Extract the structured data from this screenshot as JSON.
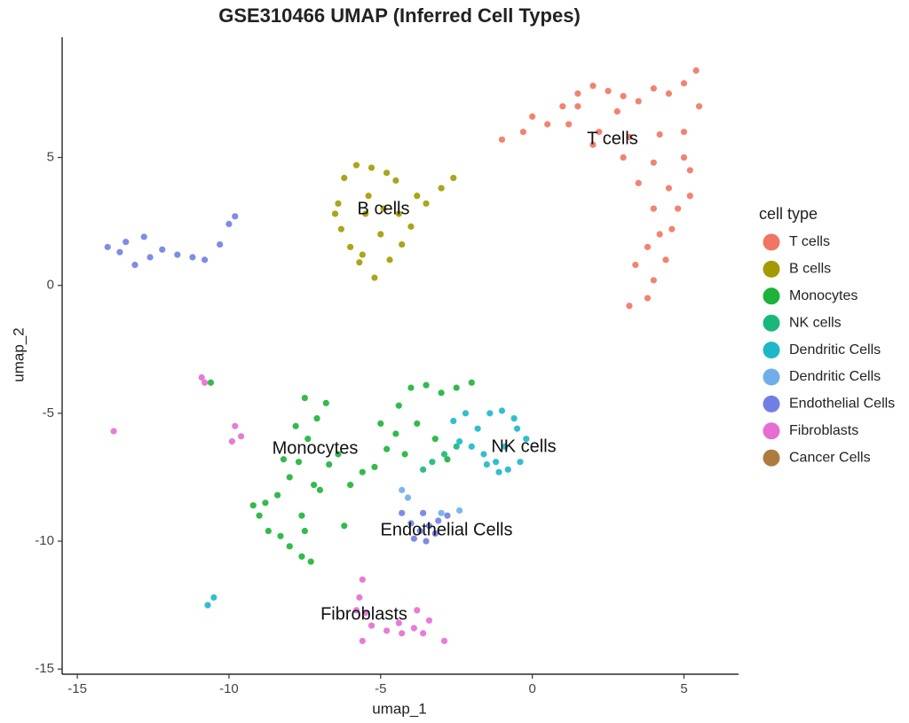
{
  "chart_data": {
    "type": "scatter",
    "title": "GSE310466 UMAP (Inferred Cell Types)",
    "x_label": "umap_1",
    "y_label": "umap_2",
    "legend_title": "cell type",
    "xlim": [
      -15.5,
      6.8
    ],
    "ylim": [
      -15.2,
      9.7
    ],
    "xticks": [
      -15,
      -10,
      -5,
      0,
      5
    ],
    "yticks": [
      -15,
      -10,
      -5,
      0,
      5
    ],
    "grid": false,
    "legend_position": "right",
    "annotations": [
      "T cells",
      "B cells",
      "Monocytes",
      "NK cells",
      "Endothelial Cells",
      "Fibroblasts"
    ],
    "series": [
      {
        "name": "T cells",
        "color": "#F07563",
        "x": [
          -1.0,
          -0.3,
          0.5,
          1.0,
          1.5,
          2.0,
          2.5,
          3.0,
          3.5,
          4.0,
          4.5,
          5.0,
          5.4,
          5.5,
          0.0,
          1.2,
          2.2,
          3.2,
          4.2,
          5.0,
          2.0,
          3.0,
          4.0,
          5.0,
          3.5,
          4.5,
          5.2,
          4.0,
          4.8,
          4.2,
          4.6,
          3.8,
          4.4,
          3.4,
          4.0,
          3.2,
          3.8,
          5.2,
          1.5,
          2.8
        ],
        "values": [
          5.7,
          6.0,
          6.3,
          7.0,
          7.5,
          7.8,
          7.6,
          7.4,
          7.2,
          7.7,
          7.5,
          7.9,
          8.4,
          7.0,
          6.6,
          6.3,
          6.0,
          5.8,
          5.9,
          6.0,
          5.5,
          5.0,
          4.8,
          5.0,
          4.0,
          3.8,
          4.5,
          3.0,
          3.0,
          2.0,
          2.2,
          1.5,
          1.0,
          0.8,
          0.2,
          -0.8,
          -0.5,
          3.5,
          7.0,
          6.8
        ]
      },
      {
        "name": "B cells",
        "color": "#A39A00",
        "x": [
          -5.8,
          -5.3,
          -4.8,
          -4.5,
          -6.2,
          -6.4,
          -6.3,
          -6.0,
          -5.7,
          -5.2,
          -4.7,
          -4.3,
          -4.0,
          -3.5,
          -3.0,
          -2.6,
          -5.5,
          -5.0,
          -5.6,
          -5.4,
          -6.5,
          -4.9,
          -4.4,
          -3.8
        ],
        "values": [
          4.7,
          4.6,
          4.4,
          4.1,
          4.2,
          3.2,
          2.2,
          1.5,
          0.9,
          0.3,
          1.0,
          1.6,
          2.3,
          3.2,
          3.8,
          4.2,
          2.8,
          2.0,
          1.2,
          3.5,
          2.8,
          3.0,
          2.8,
          3.5
        ]
      },
      {
        "name": "Monocytes",
        "color": "#1DB23A",
        "x": [
          -9.0,
          -8.7,
          -8.3,
          -8.0,
          -7.6,
          -7.3,
          -8.8,
          -8.4,
          -8.0,
          -7.7,
          -7.4,
          -7.1,
          -6.8,
          -7.5,
          -7.2,
          -7.6,
          -7.0,
          -6.7,
          -6.4,
          -6.0,
          -5.6,
          -5.2,
          -4.8,
          -4.5,
          -5.0,
          -4.4,
          -4.0,
          -3.5,
          -3.0,
          -2.5,
          -2.0,
          -3.8,
          -3.2,
          -2.8,
          -4.2,
          -6.2,
          -8.2,
          -9.2,
          -7.8,
          -7.5,
          -10.6
        ],
        "values": [
          -9.0,
          -9.6,
          -9.8,
          -10.2,
          -10.6,
          -10.8,
          -8.5,
          -8.2,
          -7.5,
          -6.9,
          -6.0,
          -5.2,
          -4.6,
          -4.4,
          -7.8,
          -9.0,
          -8.0,
          -7.0,
          -6.6,
          -7.8,
          -7.3,
          -7.1,
          -6.4,
          -5.8,
          -5.4,
          -4.7,
          -4.0,
          -3.9,
          -4.2,
          -4.0,
          -3.8,
          -5.4,
          -6.0,
          -6.8,
          -6.6,
          -9.4,
          -6.8,
          -8.6,
          -5.5,
          -9.6,
          -3.8
        ]
      },
      {
        "name": "NK cells",
        "color": "#1AB77A",
        "x": [
          -3.3,
          -2.9,
          -2.5,
          -3.6
        ],
        "values": [
          -6.9,
          -6.6,
          -6.3,
          -7.2
        ]
      },
      {
        "name": "Dendritic Cells",
        "color": "#1DB7C9",
        "x": [
          -2.4,
          -2.0,
          -1.6,
          -1.2,
          -0.8,
          -0.4,
          -0.2,
          -1.8,
          -1.4,
          -1.0,
          -0.6,
          -2.2,
          -1.5,
          -0.9,
          -0.5,
          -2.6,
          -1.1,
          -10.7,
          -10.5
        ],
        "values": [
          -6.1,
          -6.3,
          -6.6,
          -6.9,
          -7.2,
          -6.9,
          -6.0,
          -5.6,
          -5.0,
          -4.9,
          -5.2,
          -5.0,
          -7.0,
          -6.3,
          -5.6,
          -5.3,
          -7.3,
          -12.5,
          -12.2
        ]
      },
      {
        "name": "Dendritic Cells",
        "color": "#6FAEEA",
        "x": [
          -4.3,
          -4.1,
          -3.0,
          -2.4
        ],
        "values": [
          -8.0,
          -8.3,
          -8.9,
          -8.8
        ]
      },
      {
        "name": "Endothelial Cells",
        "color": "#6F7FE3",
        "x": [
          -4.3,
          -4.0,
          -3.7,
          -3.4,
          -3.1,
          -2.8,
          -3.9,
          -3.5,
          -3.2,
          -3.6,
          -14.0,
          -13.6,
          -13.1,
          -12.6,
          -12.2,
          -11.7,
          -11.2,
          -10.8,
          -10.3,
          -10.0,
          -9.8,
          -12.8,
          -13.4
        ],
        "values": [
          -8.9,
          -9.3,
          -9.6,
          -9.4,
          -9.2,
          -9.0,
          -9.9,
          -10.0,
          -9.7,
          -8.9,
          1.5,
          1.3,
          0.8,
          1.1,
          1.4,
          1.2,
          1.1,
          1.0,
          1.6,
          2.4,
          2.7,
          1.9,
          1.7
        ]
      },
      {
        "name": "Fibroblasts",
        "color": "#E56DD3",
        "x": [
          -9.8,
          -9.6,
          -9.9,
          -10.9,
          -10.8,
          -13.8,
          -5.6,
          -5.7,
          -5.5,
          -5.3,
          -5.6,
          -4.8,
          -4.3,
          -3.8,
          -3.4,
          -2.9,
          -3.9,
          -3.6,
          -4.4,
          -5.8
        ],
        "values": [
          -5.5,
          -5.9,
          -6.1,
          -3.6,
          -3.8,
          -5.7,
          -11.5,
          -12.2,
          -12.8,
          -13.3,
          -13.9,
          -13.5,
          -13.6,
          -12.7,
          -13.1,
          -13.9,
          -13.4,
          -13.6,
          -13.2,
          -12.7
        ]
      },
      {
        "name": "Cancer Cells",
        "color": "#AD7B3F",
        "x": [],
        "values": []
      }
    ]
  }
}
